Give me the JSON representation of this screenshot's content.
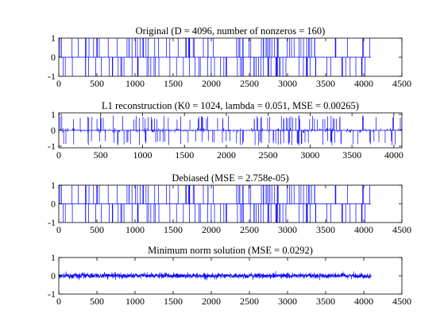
{
  "figure": {
    "background": "#ffffff"
  },
  "chart_data": [
    {
      "type": "line",
      "title": "Original (D = 4096, number of nonzeros = 160)",
      "xlabel": "",
      "ylabel": "",
      "xlim": [
        0,
        4500
      ],
      "ylim": [
        -1,
        1
      ],
      "xticks": [
        "0",
        "500",
        "1000",
        "1500",
        "2000",
        "2500",
        "3000",
        "3500",
        "4000",
        "4500"
      ],
      "yticks": [
        "-1",
        "0",
        "1"
      ],
      "series": [
        {
          "length": 4096,
          "nonzeros": 160,
          "values": [
            -1,
            1
          ],
          "color": "#0000ff"
        }
      ]
    },
    {
      "type": "line",
      "title": "L1 reconstruction (K0 = 1024, lambda = 0.051, MSE = 0.00265)",
      "xlabel": "",
      "ylabel": "",
      "xlim": [
        0,
        4096
      ],
      "ylim": [
        -1.1,
        1.1
      ],
      "xticks": [
        "0",
        "500",
        "1000",
        "1500",
        "2000",
        "2500",
        "3000",
        "3500",
        "4000"
      ],
      "yticks": [
        "-1",
        "0",
        "1"
      ],
      "series": [
        {
          "length": 4096,
          "nonzeros": 160,
          "values": [
            -0.95,
            0.95
          ],
          "color": "#0000ff"
        }
      ]
    },
    {
      "type": "line",
      "title": "Debiased (MSE = 2.758e-05)",
      "xlabel": "",
      "ylabel": "",
      "xlim": [
        0,
        4500
      ],
      "ylim": [
        -1,
        1
      ],
      "xticks": [
        "0",
        "500",
        "1000",
        "1500",
        "2000",
        "2500",
        "3000",
        "3500",
        "4000",
        "4500"
      ],
      "yticks": [
        "-1",
        "0",
        "1"
      ],
      "series": [
        {
          "length": 4096,
          "nonzeros": 160,
          "values": [
            -1,
            1
          ],
          "color": "#0000ff"
        }
      ]
    },
    {
      "type": "line",
      "title": "Minimum norm solution (MSE = 0.0292)",
      "xlabel": "",
      "ylabel": "",
      "xlim": [
        0,
        4500
      ],
      "ylim": [
        -1,
        1
      ],
      "xticks": [
        "0",
        "500",
        "1000",
        "1500",
        "2000",
        "2500",
        "3000",
        "3500",
        "4000",
        "4500"
      ],
      "yticks": [
        "-1",
        "0",
        "1"
      ],
      "series": [
        {
          "length": 4096,
          "amplitude": 0.12,
          "color": "#0000ff"
        }
      ]
    }
  ]
}
